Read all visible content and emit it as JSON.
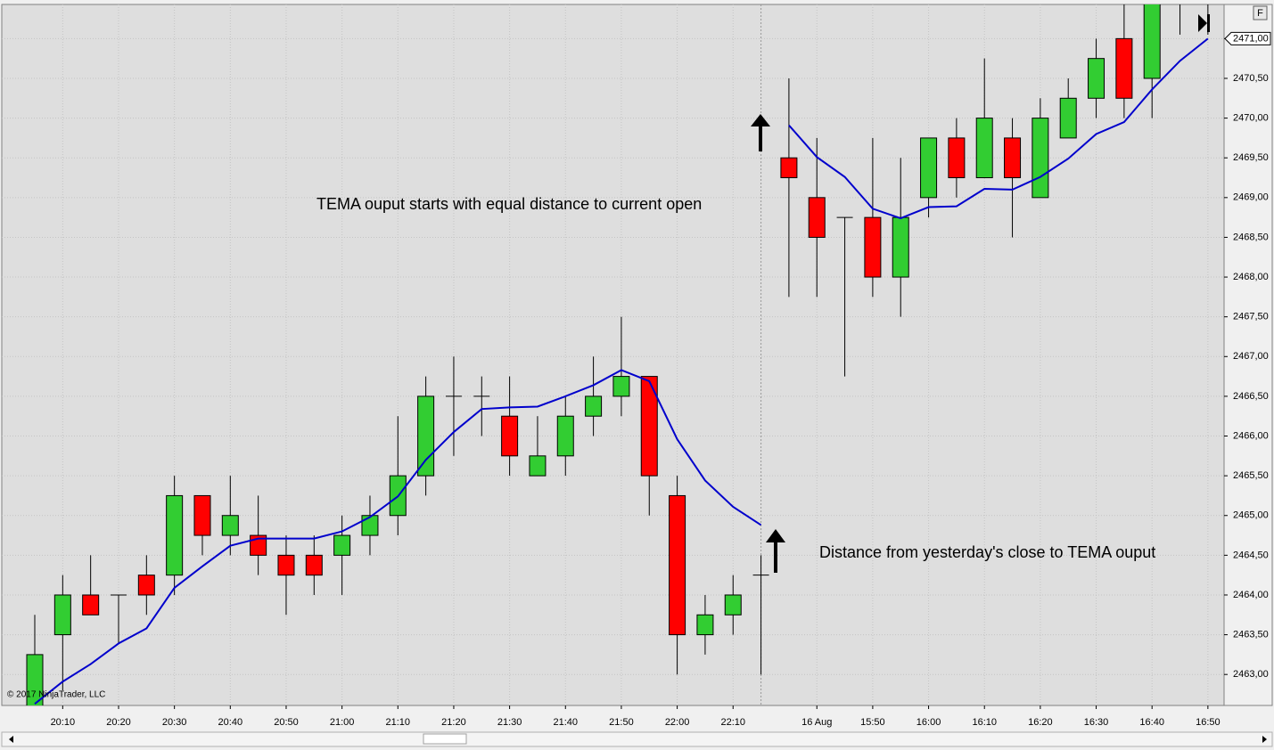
{
  "chart_data": {
    "type": "candlestick",
    "annotations": [
      "TEMA ouput starts with equal distance to current open",
      "Distance from yesterday's close to TEMA ouput"
    ],
    "copyright": "© 2017 NinjaTrader, LLC",
    "categories": [
      null,
      "20:10",
      null,
      "20:20",
      null,
      "20:30",
      null,
      "20:40",
      null,
      "20:50",
      null,
      "21:00",
      null,
      "21:10",
      null,
      "21:20",
      null,
      "21:30",
      null,
      "21:40",
      null,
      "21:50",
      null,
      "22:00",
      null,
      "22:10",
      null,
      null,
      "16 Aug",
      null,
      "15:50",
      null,
      "16:00",
      null,
      "16:10",
      null,
      "16:20",
      null,
      "16:30",
      null,
      "16:40",
      null,
      "16:50"
    ],
    "open": [
      2462.6,
      2463.5,
      2464.0,
      2464.0,
      2464.25,
      2464.25,
      2465.25,
      2464.75,
      2464.75,
      2464.5,
      2464.5,
      2464.5,
      2464.75,
      2465.0,
      2465.5,
      2466.5,
      2466.5,
      2466.25,
      2465.5,
      2465.75,
      2466.25,
      2466.5,
      2466.75,
      2465.25,
      2463.5,
      2463.75,
      2464.25,
      2469.5,
      2469.0,
      2468.75,
      2468.75,
      2468.0,
      2469.0,
      2469.75,
      2469.25,
      2469.75,
      2469.0,
      2469.75,
      2470.25,
      2471.0,
      2470.5,
      2471.5,
      2471.5
    ],
    "high": [
      2463.75,
      2464.25,
      2464.5,
      2464.0,
      2464.5,
      2465.5,
      2465.25,
      2465.5,
      2465.25,
      2464.75,
      2464.75,
      2465.0,
      2465.25,
      2466.25,
      2466.75,
      2467.0,
      2466.75,
      2466.75,
      2466.25,
      2466.5,
      2467.0,
      2467.5,
      2466.75,
      2465.5,
      2464.0,
      2464.25,
      2464.5,
      2470.5,
      2469.75,
      2468.75,
      2469.75,
      2469.5,
      2469.75,
      2470.0,
      2470.75,
      2470.0,
      2470.25,
      2470.5,
      2471.0,
      2471.5,
      2471.5,
      2471.75,
      2471.75
    ],
    "low": [
      2462.6,
      2462.8,
      2463.75,
      2463.4,
      2463.75,
      2464.0,
      2464.5,
      2464.5,
      2464.25,
      2463.75,
      2464.0,
      2464.0,
      2464.5,
      2464.75,
      2465.25,
      2465.75,
      2466.0,
      2465.5,
      2465.5,
      2465.5,
      2466.0,
      2466.25,
      2465.0,
      2463.0,
      2463.25,
      2463.5,
      2463.0,
      2467.75,
      2467.75,
      2466.75,
      2467.75,
      2467.5,
      2468.75,
      2469.0,
      2469.25,
      2468.5,
      2469.0,
      2469.75,
      2470.0,
      2470.0,
      2470.0,
      2471.05,
      2471.05
    ],
    "close": [
      2463.25,
      2464.0,
      2463.75,
      2464.0,
      2464.0,
      2465.25,
      2464.75,
      2465.0,
      2464.5,
      2464.25,
      2464.25,
      2464.75,
      2465.0,
      2465.5,
      2466.5,
      2466.5,
      2466.5,
      2465.75,
      2465.75,
      2466.25,
      2466.5,
      2466.75,
      2465.5,
      2463.5,
      2463.75,
      2464.0,
      2464.25,
      2469.25,
      2468.5,
      2468.75,
      2468.0,
      2468.75,
      2469.75,
      2469.25,
      2470.0,
      2469.25,
      2470.0,
      2470.25,
      2470.75,
      2470.25,
      2471.5,
      2471.5,
      2471.5
    ],
    "up_color": "#32cd32",
    "down_color": "#ff0000",
    "session_break": 27,
    "series": [
      {
        "name": "TEMA",
        "color": "#0000cc",
        "values": [
          2462.63,
          2462.91,
          2463.13,
          2463.39,
          2463.58,
          2464.09,
          2464.36,
          2464.62,
          2464.71,
          2464.71,
          2464.71,
          2464.8,
          2464.98,
          2465.24,
          2465.7,
          2466.05,
          2466.34,
          2466.36,
          2466.37,
          2466.5,
          2466.64,
          2466.83,
          2466.69,
          2465.96,
          2465.44,
          2465.11,
          2464.88,
          2469.91,
          2469.51,
          2469.26,
          2468.86,
          2468.74,
          2468.88,
          2468.89,
          2469.11,
          2469.1,
          2469.26,
          2469.49,
          2469.8,
          2469.95,
          2470.36,
          2470.72,
          2471.0
        ]
      }
    ],
    "ylim": [
      2462.61,
      2471.43
    ],
    "yticks": [
      {
        "value": 2463,
        "label": "2463,00"
      },
      {
        "value": 2463.5,
        "label": "2463,50"
      },
      {
        "value": 2464,
        "label": "2464,00"
      },
      {
        "value": 2464.5,
        "label": "2464,50"
      },
      {
        "value": 2465,
        "label": "2465,00"
      },
      {
        "value": 2465.5,
        "label": "2465,50"
      },
      {
        "value": 2466,
        "label": "2466,00"
      },
      {
        "value": 2466.5,
        "label": "2466,50"
      },
      {
        "value": 2467,
        "label": "2467,00"
      },
      {
        "value": 2467.5,
        "label": "2467,50"
      },
      {
        "value": 2468,
        "label": "2468,00"
      },
      {
        "value": 2468.5,
        "label": "2468,50"
      },
      {
        "value": 2469,
        "label": "2469,00"
      },
      {
        "value": 2469.5,
        "label": "2469,50"
      },
      {
        "value": 2470,
        "label": "2470,00"
      },
      {
        "value": 2470.5,
        "label": "2470,50"
      },
      {
        "value": 2471,
        "label": "2471,00"
      }
    ],
    "grid": true
  }
}
